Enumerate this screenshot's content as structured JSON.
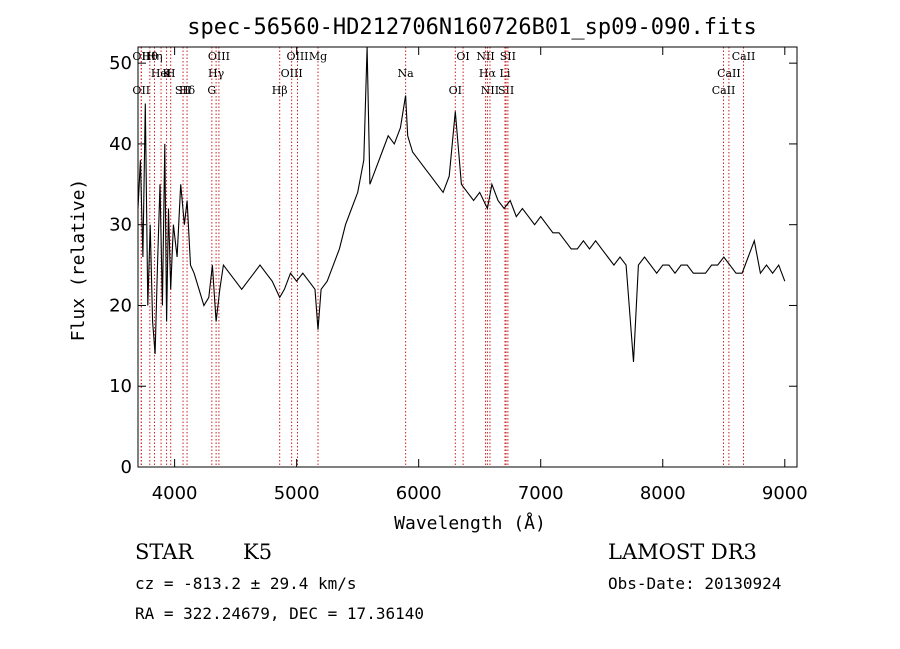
{
  "chart_data": {
    "type": "line",
    "title": "spec-56560-HD212706N160726B01_sp09-090.fits",
    "xlabel": "Wavelength (Å)",
    "ylabel": "Flux (relative)",
    "xlim": [
      3700,
      9100
    ],
    "ylim": [
      0,
      52
    ],
    "xticks": [
      "4000",
      "5000",
      "6000",
      "7000",
      "8000",
      "9000"
    ],
    "yticks": [
      "0",
      "10",
      "20",
      "30",
      "40",
      "50"
    ],
    "grid": false,
    "spectrum": {
      "x": [
        3700,
        3720,
        3740,
        3760,
        3780,
        3800,
        3820,
        3840,
        3860,
        3880,
        3900,
        3920,
        3934,
        3950,
        3968,
        3990,
        4020,
        4050,
        4080,
        4102,
        4130,
        4160,
        4200,
        4240,
        4280,
        4310,
        4340,
        4370,
        4400,
        4450,
        4500,
        4550,
        4600,
        4650,
        4700,
        4750,
        4800,
        4861,
        4900,
        4950,
        5000,
        5050,
        5100,
        5150,
        5175,
        5200,
        5250,
        5300,
        5350,
        5400,
        5450,
        5500,
        5550,
        5577,
        5600,
        5650,
        5700,
        5750,
        5800,
        5850,
        5893,
        5910,
        5950,
        6000,
        6050,
        6100,
        6150,
        6200,
        6250,
        6300,
        6350,
        6400,
        6450,
        6500,
        6563,
        6600,
        6650,
        6700,
        6750,
        6800,
        6850,
        6900,
        6950,
        7000,
        7050,
        7100,
        7150,
        7200,
        7250,
        7300,
        7350,
        7400,
        7450,
        7500,
        7550,
        7600,
        7650,
        7700,
        7760,
        7800,
        7850,
        7900,
        7950,
        8000,
        8050,
        8100,
        8150,
        8200,
        8250,
        8300,
        8350,
        8400,
        8450,
        8500,
        8550,
        8600,
        8650,
        8700,
        8750,
        8800,
        8850,
        8900,
        8950,
        9000
      ],
      "y": [
        32,
        38,
        26,
        45,
        20,
        30,
        18,
        14,
        25,
        35,
        20,
        40,
        18,
        32,
        22,
        30,
        26,
        35,
        30,
        33,
        25,
        24,
        22,
        20,
        21,
        25,
        18,
        22,
        25,
        24,
        23,
        22,
        23,
        24,
        25,
        24,
        23,
        21,
        22,
        24,
        23,
        24,
        23,
        22,
        17,
        22,
        23,
        25,
        27,
        30,
        32,
        34,
        38,
        52,
        35,
        37,
        39,
        41,
        40,
        42,
        46,
        41,
        39,
        38,
        37,
        36,
        35,
        34,
        36,
        44,
        35,
        34,
        33,
        34,
        32,
        35,
        33,
        32,
        33,
        31,
        32,
        31,
        30,
        31,
        30,
        29,
        29,
        28,
        27,
        27,
        28,
        27,
        28,
        27,
        26,
        25,
        26,
        25,
        13,
        25,
        26,
        25,
        24,
        25,
        25,
        24,
        25,
        25,
        24,
        24,
        24,
        25,
        25,
        26,
        25,
        24,
        24,
        26,
        28,
        24,
        25,
        24,
        25,
        23
      ]
    },
    "lines": [
      {
        "name": "Hθ",
        "x": 3797
      },
      {
        "name": "K",
        "x": 3934
      },
      {
        "name": "Hδ",
        "x": 4102
      },
      {
        "name": "OII",
        "x": 3727
      },
      {
        "name": "HeI",
        "x": 3889
      },
      {
        "name": "SII",
        "x": 4069
      },
      {
        "name": "OIII",
        "x": 4363
      },
      {
        "name": "Hγ",
        "x": 4340
      },
      {
        "name": "OII",
        "x": 3727
      },
      {
        "name": "Hη",
        "x": 3835
      },
      {
        "name": "H",
        "x": 3968
      },
      {
        "name": "G",
        "x": 4305
      },
      {
        "name": "OIII",
        "x": 5007
      },
      {
        "name": "OIII",
        "x": 4959
      },
      {
        "name": "Hβ",
        "x": 4861
      },
      {
        "name": "Mg",
        "x": 5175
      },
      {
        "name": "Na",
        "x": 5893
      },
      {
        "name": "OI",
        "x": 6300
      },
      {
        "name": "OI",
        "x": 6364
      },
      {
        "name": "Hα",
        "x": 6563
      },
      {
        "name": "SII",
        "x": 6716
      },
      {
        "name": "NII",
        "x": 6548
      },
      {
        "name": "Li",
        "x": 6707
      },
      {
        "name": "NII",
        "x": 6584
      },
      {
        "name": "SII",
        "x": 6731
      },
      {
        "name": "CaII",
        "x": 8542
      },
      {
        "name": "CaII",
        "x": 8498
      },
      {
        "name": "CaII",
        "x": 8662
      }
    ]
  },
  "info": {
    "class": "STAR",
    "subclass": "K5",
    "survey": "LAMOST DR3",
    "cz": "cz = -813.2 ± 29.4 km/s",
    "obsdate": "Obs-Date: 20130924",
    "radec": "RA = 322.24679, DEC =  17.36140"
  },
  "colors": {
    "spectrum": "#000000",
    "lines": "#cc2222",
    "axes": "#000000"
  }
}
